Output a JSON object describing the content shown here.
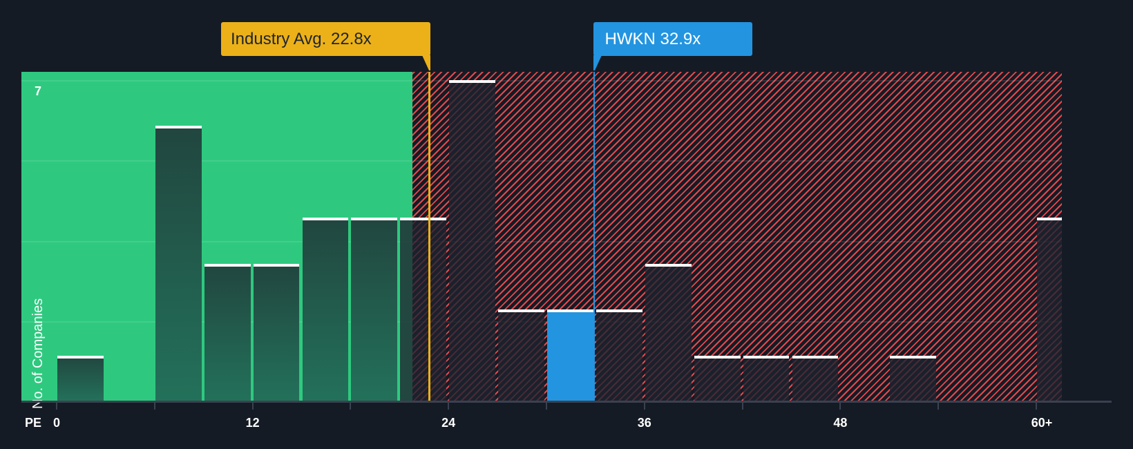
{
  "chart_data": {
    "type": "bar",
    "title": "",
    "xlabel": "PE",
    "ylabel": "No. of Companies",
    "ylim": [
      0,
      7
    ],
    "y_tick_labels": [
      "7"
    ],
    "x_tick_labels": [
      "0",
      "12",
      "24",
      "36",
      "48",
      "60+"
    ],
    "bin_width": 3,
    "categories": [
      "0-3",
      "3-6",
      "6-9",
      "9-12",
      "12-15",
      "15-18",
      "18-21",
      "21-24",
      "24-27",
      "27-30",
      "30-33",
      "33-36",
      "36-39",
      "39-42",
      "42-45",
      "45-48",
      "48-51",
      "51-54",
      "54-57",
      "57-60",
      "60+"
    ],
    "values": [
      1,
      0,
      6,
      3,
      3,
      4,
      4,
      4,
      7,
      2,
      2,
      2,
      3,
      1,
      1,
      1,
      0,
      1,
      0,
      0,
      4
    ],
    "highlight_category": "30-33",
    "annotations": [
      {
        "label": "Industry Avg. 22.8x",
        "value": 22.8,
        "color": "#ecb118"
      },
      {
        "label": "HWKN 32.9x",
        "value": 32.9,
        "color": "#2394e0"
      }
    ],
    "zones": [
      {
        "name": "below-industry-avg",
        "from": 0,
        "to": 22.8,
        "color": "#2ec97f"
      },
      {
        "name": "above-industry-avg",
        "from": 22.8,
        "to": 63,
        "color": "#e5484d",
        "pattern": "diagonal-hatch"
      }
    ],
    "grid": true,
    "legend": null
  },
  "labels": {
    "industry_callout": "Industry Avg. 22.8x",
    "company_callout": "HWKN 32.9x",
    "y_axis_title": "No. of Companies",
    "y_max": "7",
    "x_axis_title": "PE",
    "x_ticks": [
      "0",
      "12",
      "24",
      "36",
      "48",
      "60+"
    ]
  },
  "colors": {
    "background": "#151b24",
    "green_zone": "#2ec97f",
    "red_hatch": "#e5484d",
    "industry": "#ecb118",
    "company": "#2394e0"
  }
}
